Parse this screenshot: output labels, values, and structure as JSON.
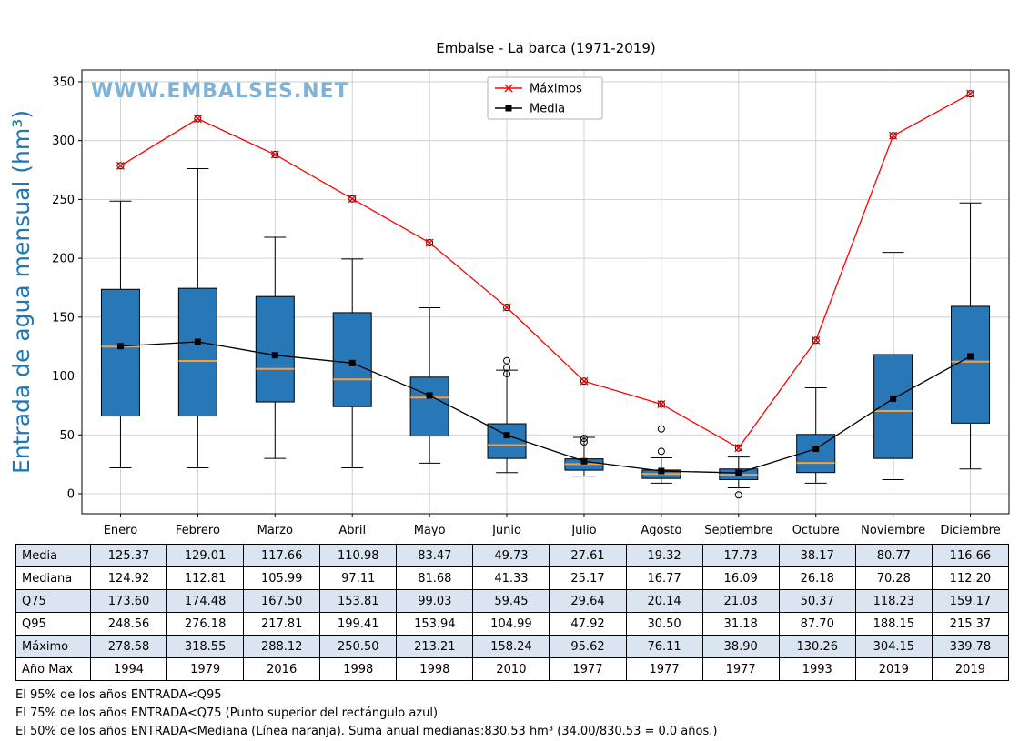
{
  "title": "Embalse - La barca (1971-2019)",
  "watermark": "WWW.EMBALSES.NET",
  "colors": {
    "box_fill": "#2878b8",
    "box_edge": "#000000",
    "median": "#ff9c33",
    "max_line": "#ff0000",
    "mean_line": "#000000",
    "grid": "#c8c8c8",
    "watermark": "#7fb2d9",
    "ylabel": "#1f77b4",
    "table_shaded": "#dbe5f1"
  },
  "chart_data": {
    "type": "boxplot+line",
    "title": "Embalse - La barca (1971-2019)",
    "ylabel": "Entrada de agua mensual (hm³)",
    "xlabel": "",
    "ylim": [
      -17,
      360
    ],
    "yticks": [
      0,
      50,
      100,
      150,
      200,
      250,
      300,
      350
    ],
    "grid": true,
    "legend_position": "top-center",
    "categories": [
      "Enero",
      "Febrero",
      "Marzo",
      "Abril",
      "Mayo",
      "Junio",
      "Julio",
      "Agosto",
      "Septiembre",
      "Octubre",
      "Noviembre",
      "Diciembre"
    ],
    "series": [
      {
        "name": "Máximos",
        "marker": "x",
        "color": "#ff0000",
        "values": [
          278.58,
          318.55,
          288.12,
          250.5,
          213.21,
          158.24,
          95.62,
          76.11,
          38.9,
          130.26,
          304.15,
          339.78
        ]
      },
      {
        "name": "Media",
        "marker": "square",
        "color": "#000000",
        "values": [
          125.37,
          129.01,
          117.66,
          110.98,
          83.47,
          49.73,
          27.61,
          19.32,
          17.73,
          38.17,
          80.77,
          116.66
        ]
      }
    ],
    "boxplot": {
      "q25": [
        66,
        66,
        78,
        74,
        49,
        30,
        20,
        13,
        12,
        18,
        30,
        60
      ],
      "median": [
        124.92,
        112.81,
        105.99,
        97.11,
        81.68,
        41.33,
        25.17,
        16.77,
        16.09,
        26.18,
        70.28,
        112.2
      ],
      "q75": [
        173.6,
        174.48,
        167.5,
        153.81,
        99.03,
        59.45,
        29.64,
        20.14,
        21.03,
        50.37,
        118.23,
        159.17
      ],
      "whisker_low": [
        22,
        22,
        30,
        22,
        26,
        18,
        15,
        9,
        5,
        9,
        12,
        21
      ],
      "whisker_high": [
        248.56,
        276.18,
        217.81,
        199.41,
        158,
        104.99,
        47.92,
        30.5,
        31.18,
        90,
        205,
        247
      ],
      "outliers": [
        [
          278.58
        ],
        [
          318.55
        ],
        [
          288.12
        ],
        [
          250.5
        ],
        [
          213.21
        ],
        [
          102,
          107,
          113,
          158.24
        ],
        [
          44,
          47,
          95.62
        ],
        [
          36,
          55,
          76.11
        ],
        [
          -1,
          38.9
        ],
        [
          130.26
        ],
        [
          304.15
        ],
        [
          339.78
        ]
      ]
    }
  },
  "table": {
    "rows": [
      {
        "header": "Media",
        "shaded": true,
        "values": [
          "125.37",
          "129.01",
          "117.66",
          "110.98",
          "83.47",
          "49.73",
          "27.61",
          "19.32",
          "17.73",
          "38.17",
          "80.77",
          "116.66"
        ]
      },
      {
        "header": "Mediana",
        "shaded": false,
        "values": [
          "124.92",
          "112.81",
          "105.99",
          "97.11",
          "81.68",
          "41.33",
          "25.17",
          "16.77",
          "16.09",
          "26.18",
          "70.28",
          "112.20"
        ]
      },
      {
        "header": "Q75",
        "shaded": true,
        "values": [
          "173.60",
          "174.48",
          "167.50",
          "153.81",
          "99.03",
          "59.45",
          "29.64",
          "20.14",
          "21.03",
          "50.37",
          "118.23",
          "159.17"
        ]
      },
      {
        "header": "Q95",
        "shaded": false,
        "values": [
          "248.56",
          "276.18",
          "217.81",
          "199.41",
          "153.94",
          "104.99",
          "47.92",
          "30.50",
          "31.18",
          "87.70",
          "188.15",
          "215.37"
        ]
      },
      {
        "header": "Máximo",
        "shaded": true,
        "values": [
          "278.58",
          "318.55",
          "288.12",
          "250.50",
          "213.21",
          "158.24",
          "95.62",
          "76.11",
          "38.90",
          "130.26",
          "304.15",
          "339.78"
        ]
      },
      {
        "header": "Año Max",
        "shaded": false,
        "values": [
          "1994",
          "1979",
          "2016",
          "1998",
          "1998",
          "2010",
          "1977",
          "1977",
          "1977",
          "1993",
          "2019",
          "2019"
        ]
      }
    ]
  },
  "legend": {
    "items": [
      "Máximos",
      "Media"
    ]
  },
  "footnotes": [
    "El 95% de los años ENTRADA<Q95",
    "El 75% de los años ENTRADA<Q75 (Punto superior del rectángulo azul)",
    "El 50% de los años ENTRADA<Mediana (Línea naranja). Suma anual medianas:830.53 hm³ (34.00/830.53 = 0.0 años.)"
  ]
}
